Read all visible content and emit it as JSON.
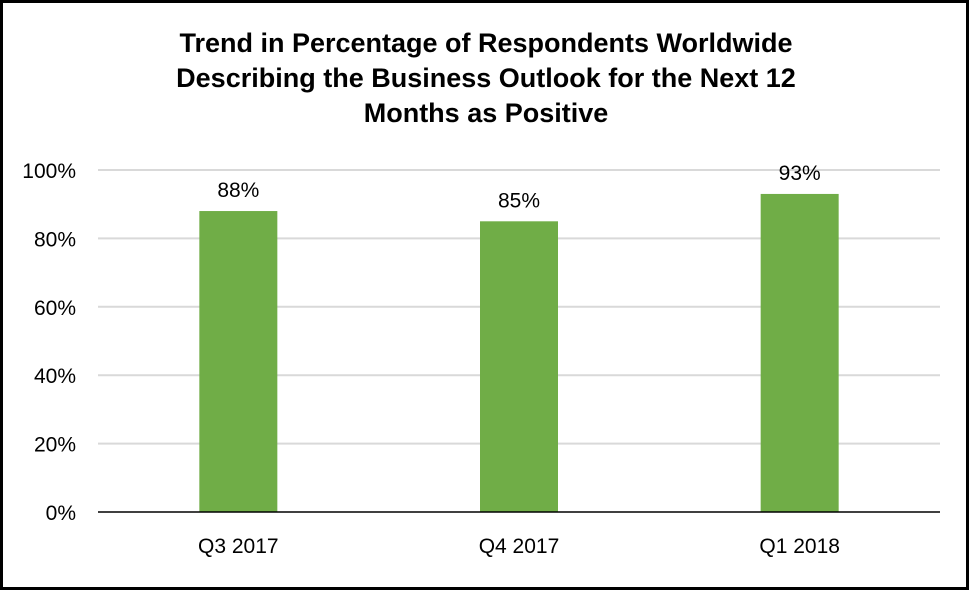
{
  "chart_data": {
    "type": "bar",
    "title_lines": [
      "Trend in Percentage of Respondents Worldwide",
      "Describing the Business Outlook for the Next 12",
      "Months as Positive"
    ],
    "categories": [
      "Q3 2017",
      "Q4 2017",
      "Q1 2018"
    ],
    "values": [
      88,
      85,
      93
    ],
    "data_labels": [
      "88%",
      "85%",
      "93%"
    ],
    "ylim": [
      0,
      100
    ],
    "yticks": [
      0,
      20,
      40,
      60,
      80,
      100
    ],
    "ytick_labels": [
      "0%",
      "20%",
      "40%",
      "60%",
      "80%",
      "100%"
    ],
    "xlabel": "",
    "ylabel": "",
    "grid": true,
    "legend": "none",
    "bar_color": "#70AD47",
    "grid_color": "#D9D9D9"
  }
}
